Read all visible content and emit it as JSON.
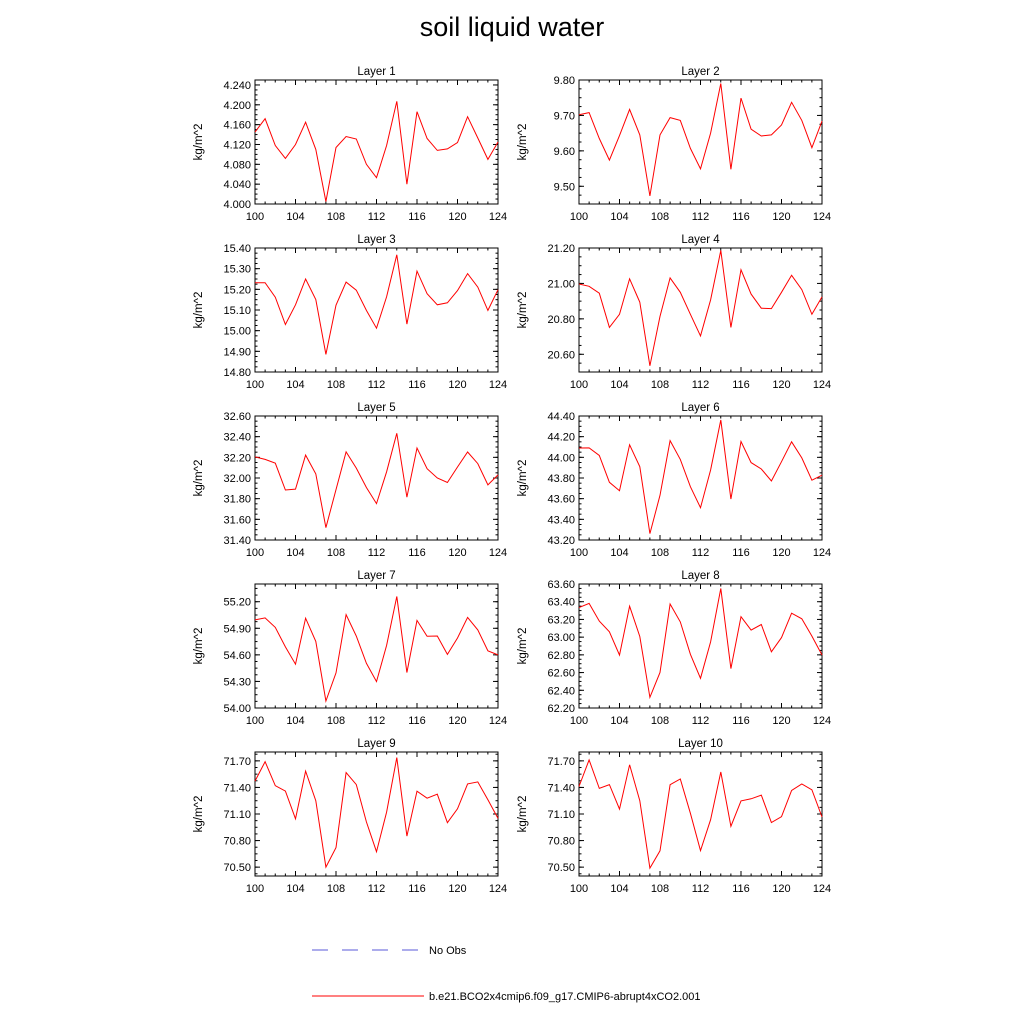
{
  "title": "soil liquid water",
  "colors": {
    "model_line": "#ff0000",
    "obs_line": "#5a5ad8",
    "axis": "#000000"
  },
  "legend": [
    {
      "label": "No Obs",
      "style": "dashed",
      "color": "#5a5ad8"
    },
    {
      "label": "b.e21.BCO2x4cmip6.f09_g17.CMIP6-abrupt4xCO2.001",
      "style": "solid",
      "color": "#ff0000"
    }
  ],
  "chart_data": [
    {
      "type": "line",
      "title": "Layer 1",
      "ylabel": "kg/m^2",
      "xlabel": "",
      "xlim": [
        100,
        124
      ],
      "ylim": [
        4.0,
        4.25
      ],
      "grid": false,
      "x_ticks": [
        "100",
        "104",
        "108",
        "112",
        "116",
        "120",
        "124"
      ],
      "y_ticks": [
        "4.000",
        "4.040",
        "4.080",
        "4.120",
        "4.160",
        "4.200",
        "4.240"
      ],
      "x": [
        100,
        101,
        102,
        103,
        104,
        105,
        106,
        107,
        108,
        109,
        110,
        111,
        112,
        113,
        114,
        115,
        116,
        117,
        118,
        119,
        120,
        121,
        122,
        123,
        124
      ],
      "series": [
        {
          "name": "b.e21.BCO2x4cmip6.f09_g17.CMIP6-abrupt4xCO2.001",
          "values": [
            4.145,
            4.172,
            4.118,
            4.092,
            4.12,
            4.165,
            4.11,
            4.005,
            4.114,
            4.136,
            4.131,
            4.08,
            4.053,
            4.118,
            4.207,
            4.04,
            4.186,
            4.132,
            4.108,
            4.111,
            4.124,
            4.176,
            4.133,
            4.09,
            4.125
          ]
        }
      ]
    },
    {
      "type": "line",
      "title": "Layer 2",
      "ylabel": "kg/m^2",
      "xlabel": "",
      "xlim": [
        100,
        124
      ],
      "ylim": [
        9.45,
        9.8
      ],
      "grid": false,
      "x_ticks": [
        "100",
        "104",
        "108",
        "112",
        "116",
        "120",
        "124"
      ],
      "y_ticks": [
        "9.50",
        "9.60",
        "9.70",
        "9.80"
      ],
      "x": [
        100,
        101,
        102,
        103,
        104,
        105,
        106,
        107,
        108,
        109,
        110,
        111,
        112,
        113,
        114,
        115,
        116,
        117,
        118,
        119,
        120,
        121,
        122,
        123,
        124
      ],
      "series": [
        {
          "name": "b.e21.BCO2x4cmip6.f09_g17.CMIP6-abrupt4xCO2.001",
          "values": [
            9.702,
            9.708,
            9.635,
            9.574,
            9.643,
            9.717,
            9.645,
            9.473,
            9.645,
            9.694,
            9.686,
            9.607,
            9.549,
            9.65,
            9.79,
            9.548,
            9.749,
            9.661,
            9.642,
            9.645,
            9.673,
            9.737,
            9.686,
            9.609,
            9.684
          ]
        }
      ]
    },
    {
      "type": "line",
      "title": "Layer 3",
      "ylabel": "kg/m^2",
      "xlabel": "",
      "xlim": [
        100,
        124
      ],
      "ylim": [
        14.8,
        15.4
      ],
      "grid": false,
      "x_ticks": [
        "100",
        "104",
        "108",
        "112",
        "116",
        "120",
        "124"
      ],
      "y_ticks": [
        "14.80",
        "14.90",
        "15.00",
        "15.10",
        "15.20",
        "15.30",
        "15.40"
      ],
      "x": [
        100,
        101,
        102,
        103,
        104,
        105,
        106,
        107,
        108,
        109,
        110,
        111,
        112,
        113,
        114,
        115,
        116,
        117,
        118,
        119,
        120,
        121,
        122,
        123,
        124
      ],
      "series": [
        {
          "name": "b.e21.BCO2x4cmip6.f09_g17.CMIP6-abrupt4xCO2.001",
          "values": [
            15.232,
            15.232,
            15.162,
            15.03,
            15.125,
            15.25,
            15.151,
            14.885,
            15.123,
            15.235,
            15.196,
            15.098,
            15.012,
            15.164,
            15.367,
            15.032,
            15.288,
            15.179,
            15.125,
            15.135,
            15.194,
            15.276,
            15.211,
            15.098,
            15.198
          ]
        }
      ]
    },
    {
      "type": "line",
      "title": "Layer 4",
      "ylabel": "kg/m^2",
      "xlabel": "",
      "xlim": [
        100,
        124
      ],
      "ylim": [
        20.5,
        21.2
      ],
      "grid": false,
      "x_ticks": [
        "100",
        "104",
        "108",
        "112",
        "116",
        "120",
        "124"
      ],
      "y_ticks": [
        "20.60",
        "20.80",
        "21.00",
        "21.20"
      ],
      "x": [
        100,
        101,
        102,
        103,
        104,
        105,
        106,
        107,
        108,
        109,
        110,
        111,
        112,
        113,
        114,
        115,
        116,
        117,
        118,
        119,
        120,
        121,
        122,
        123,
        124
      ],
      "series": [
        {
          "name": "b.e21.BCO2x4cmip6.f09_g17.CMIP6-abrupt4xCO2.001",
          "values": [
            20.997,
            20.984,
            20.945,
            20.752,
            20.826,
            21.026,
            20.894,
            20.535,
            20.814,
            21.031,
            20.95,
            20.826,
            20.704,
            20.907,
            21.186,
            20.752,
            21.077,
            20.94,
            20.86,
            20.858,
            20.95,
            21.046,
            20.965,
            20.826,
            20.924
          ]
        }
      ]
    },
    {
      "type": "line",
      "title": "Layer 5",
      "ylabel": "kg/m^2",
      "xlabel": "",
      "xlim": [
        100,
        124
      ],
      "ylim": [
        31.4,
        32.6
      ],
      "grid": false,
      "x_ticks": [
        "100",
        "104",
        "108",
        "112",
        "116",
        "120",
        "124"
      ],
      "y_ticks": [
        "31.40",
        "31.60",
        "31.80",
        "32.00",
        "32.20",
        "32.40",
        "32.60"
      ],
      "x": [
        100,
        101,
        102,
        103,
        104,
        105,
        106,
        107,
        108,
        109,
        110,
        111,
        112,
        113,
        114,
        115,
        116,
        117,
        118,
        119,
        120,
        121,
        122,
        123,
        124
      ],
      "series": [
        {
          "name": "b.e21.BCO2x4cmip6.f09_g17.CMIP6-abrupt4xCO2.001",
          "values": [
            32.204,
            32.18,
            32.143,
            31.884,
            31.893,
            32.222,
            32.04,
            31.52,
            31.888,
            32.253,
            32.096,
            31.908,
            31.752,
            32.06,
            32.433,
            31.814,
            32.29,
            32.09,
            32.0,
            31.956,
            32.106,
            32.252,
            32.139,
            31.933,
            32.03
          ]
        }
      ]
    },
    {
      "type": "line",
      "title": "Layer 6",
      "ylabel": "kg/m^2",
      "xlabel": "",
      "xlim": [
        100,
        124
      ],
      "ylim": [
        43.2,
        44.4
      ],
      "grid": false,
      "x_ticks": [
        "100",
        "104",
        "108",
        "112",
        "116",
        "120",
        "124"
      ],
      "y_ticks": [
        "43.20",
        "43.40",
        "43.60",
        "43.80",
        "44.00",
        "44.20",
        "44.40"
      ],
      "x": [
        100,
        101,
        102,
        103,
        104,
        105,
        106,
        107,
        108,
        109,
        110,
        111,
        112,
        113,
        114,
        115,
        116,
        117,
        118,
        119,
        120,
        121,
        122,
        123,
        124
      ],
      "series": [
        {
          "name": "b.e21.BCO2x4cmip6.f09_g17.CMIP6-abrupt4xCO2.001",
          "values": [
            44.09,
            44.091,
            44.018,
            43.758,
            43.677,
            44.121,
            43.909,
            43.262,
            43.633,
            44.162,
            43.98,
            43.716,
            43.513,
            43.877,
            44.361,
            43.596,
            44.153,
            43.949,
            43.887,
            43.771,
            43.958,
            44.15,
            43.995,
            43.779,
            43.827
          ]
        }
      ]
    },
    {
      "type": "line",
      "title": "Layer 7",
      "ylabel": "kg/m^2",
      "xlabel": "",
      "xlim": [
        100,
        124
      ],
      "ylim": [
        54.0,
        55.4
      ],
      "grid": false,
      "x_ticks": [
        "100",
        "104",
        "108",
        "112",
        "116",
        "120",
        "124"
      ],
      "y_ticks": [
        "54.00",
        "54.30",
        "54.60",
        "54.90",
        "55.20"
      ],
      "x": [
        100,
        101,
        102,
        103,
        104,
        105,
        106,
        107,
        108,
        109,
        110,
        111,
        112,
        113,
        114,
        115,
        116,
        117,
        118,
        119,
        120,
        121,
        122,
        123,
        124
      ],
      "series": [
        {
          "name": "b.e21.BCO2x4cmip6.f09_g17.CMIP6-abrupt4xCO2.001",
          "values": [
            54.995,
            55.017,
            54.91,
            54.69,
            54.495,
            55.014,
            54.752,
            54.079,
            54.396,
            55.054,
            54.812,
            54.505,
            54.298,
            54.707,
            55.259,
            54.401,
            54.989,
            54.809,
            54.813,
            54.605,
            54.79,
            55.023,
            54.882,
            54.646,
            54.6
          ]
        }
      ]
    },
    {
      "type": "line",
      "title": "Layer 8",
      "ylabel": "kg/m^2",
      "xlabel": "",
      "xlim": [
        100,
        124
      ],
      "ylim": [
        62.2,
        63.6
      ],
      "grid": false,
      "x_ticks": [
        "100",
        "104",
        "108",
        "112",
        "116",
        "120",
        "124"
      ],
      "y_ticks": [
        "62.20",
        "62.40",
        "62.60",
        "62.80",
        "63.00",
        "63.20",
        "63.40",
        "63.60"
      ],
      "x": [
        100,
        101,
        102,
        103,
        104,
        105,
        106,
        107,
        108,
        109,
        110,
        111,
        112,
        113,
        114,
        115,
        116,
        117,
        118,
        119,
        120,
        121,
        122,
        123,
        124
      ],
      "series": [
        {
          "name": "b.e21.BCO2x4cmip6.f09_g17.CMIP6-abrupt4xCO2.001",
          "values": [
            63.334,
            63.381,
            63.181,
            63.06,
            62.797,
            63.349,
            63.007,
            62.321,
            62.601,
            63.374,
            63.172,
            62.806,
            62.535,
            62.946,
            63.549,
            62.645,
            63.231,
            63.079,
            63.143,
            62.834,
            62.995,
            63.27,
            63.207,
            63.012,
            62.798
          ]
        }
      ]
    },
    {
      "type": "line",
      "title": "Layer 9",
      "ylabel": "kg/m^2",
      "xlabel": "",
      "xlim": [
        100,
        124
      ],
      "ylim": [
        70.4,
        71.8
      ],
      "grid": false,
      "x_ticks": [
        "100",
        "104",
        "108",
        "112",
        "116",
        "120",
        "124"
      ],
      "y_ticks": [
        "70.50",
        "70.80",
        "71.10",
        "71.40",
        "71.70"
      ],
      "x": [
        100,
        101,
        102,
        103,
        104,
        105,
        106,
        107,
        108,
        109,
        110,
        111,
        112,
        113,
        114,
        115,
        116,
        117,
        118,
        119,
        120,
        121,
        122,
        123,
        124
      ],
      "series": [
        {
          "name": "b.e21.BCO2x4cmip6.f09_g17.CMIP6-abrupt4xCO2.001",
          "values": [
            71.472,
            71.69,
            71.419,
            71.358,
            71.046,
            71.584,
            71.25,
            70.5,
            70.721,
            71.568,
            71.432,
            71.011,
            70.674,
            71.121,
            71.737,
            70.85,
            71.357,
            71.278,
            71.323,
            71.002,
            71.159,
            71.44,
            71.462,
            71.26,
            71.05
          ]
        }
      ]
    },
    {
      "type": "line",
      "title": "Layer 10",
      "ylabel": "kg/m^2",
      "xlabel": "",
      "xlim": [
        100,
        124
      ],
      "ylim": [
        70.4,
        71.8
      ],
      "grid": false,
      "x_ticks": [
        "100",
        "104",
        "108",
        "112",
        "116",
        "120",
        "124"
      ],
      "y_ticks": [
        "70.50",
        "70.80",
        "71.10",
        "71.40",
        "71.70"
      ],
      "x": [
        100,
        101,
        102,
        103,
        104,
        105,
        106,
        107,
        108,
        109,
        110,
        111,
        112,
        113,
        114,
        115,
        116,
        117,
        118,
        119,
        120,
        121,
        122,
        123,
        124
      ],
      "series": [
        {
          "name": "b.e21.BCO2x4cmip6.f09_g17.CMIP6-abrupt4xCO2.001",
          "values": [
            71.41,
            71.711,
            71.389,
            71.432,
            71.155,
            71.656,
            71.25,
            70.489,
            70.685,
            71.431,
            71.495,
            71.108,
            70.687,
            71.036,
            71.574,
            70.961,
            71.248,
            71.272,
            71.313,
            71.004,
            71.07,
            71.365,
            71.439,
            71.373,
            71.066
          ]
        }
      ]
    }
  ]
}
